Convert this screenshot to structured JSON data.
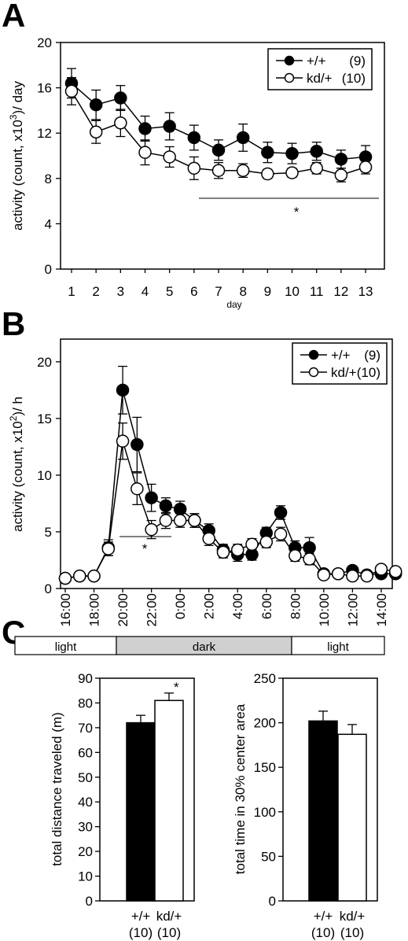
{
  "figure": {
    "panel_labels": [
      "A",
      "B",
      "C"
    ]
  },
  "chart_data": [
    {
      "panel": "A",
      "type": "line",
      "xlabel": "day",
      "ylabel": "activity (count, x10³)/ day",
      "ylim": [
        0,
        20
      ],
      "yticks": [
        "0",
        "4",
        "8",
        "12",
        "16",
        "20"
      ],
      "categories": [
        "1",
        "2",
        "3",
        "4",
        "5",
        "6",
        "7",
        "8",
        "9",
        "10",
        "11",
        "12",
        "13"
      ],
      "legend": {
        "placement": "top-right",
        "entries": [
          {
            "label": "+/+",
            "n": "(9)",
            "marker": "filled"
          },
          {
            "label": "kd/+",
            "n": "(10)",
            "marker": "open"
          }
        ]
      },
      "series": [
        {
          "name": "+/+ (9)",
          "marker": "filled",
          "values": [
            16.4,
            14.5,
            15.1,
            12.4,
            12.6,
            11.6,
            10.5,
            11.6,
            10.3,
            10.2,
            10.4,
            9.7,
            9.9
          ],
          "errors": [
            1.3,
            1.3,
            1.1,
            1.1,
            1.2,
            1.1,
            0.9,
            1.2,
            0.9,
            0.9,
            0.8,
            0.8,
            1.0
          ]
        },
        {
          "name": "kd/+ (10)",
          "marker": "open",
          "values": [
            15.7,
            12.1,
            12.9,
            10.3,
            9.9,
            8.9,
            8.7,
            8.7,
            8.4,
            8.5,
            8.9,
            8.3,
            9.0
          ],
          "errors": [
            1.2,
            1.0,
            1.2,
            1.1,
            0.9,
            1.0,
            0.7,
            0.6,
            0.4,
            0.4,
            0.5,
            0.6,
            0.6
          ]
        }
      ],
      "significance": {
        "from": "6",
        "to": "13",
        "label": "*"
      }
    },
    {
      "panel": "B",
      "type": "line",
      "ylabel": "activity (count, x10²)/ h",
      "ylim": [
        0,
        22
      ],
      "yticks": [
        "0",
        "5",
        "10",
        "15",
        "20"
      ],
      "xticks": [
        "16:00",
        "18:00",
        "20:00",
        "22:00",
        "0:00",
        "2:00",
        "4:00",
        "6:00",
        "8:00",
        "10:00",
        "12:00",
        "14:00"
      ],
      "x_hours": [
        16,
        17,
        18,
        19,
        20,
        21,
        22,
        23,
        24,
        25,
        26,
        27,
        28,
        29,
        30,
        31,
        32,
        33,
        34,
        35,
        36,
        37,
        38,
        39
      ],
      "legend": {
        "placement": "top-right",
        "entries": [
          {
            "label": "+/+",
            "n": "(9)",
            "marker": "filled"
          },
          {
            "label": "kd/+",
            "n": "(10)",
            "marker": "open"
          }
        ]
      },
      "series": [
        {
          "name": "+/+ (9)",
          "marker": "filled",
          "values": [
            0.9,
            1.1,
            1.1,
            3.6,
            17.5,
            12.7,
            8.0,
            7.3,
            7.0,
            6.0,
            5.1,
            3.4,
            3.0,
            3.0,
            4.9,
            6.7,
            3.6,
            3.6,
            1.3,
            1.3,
            1.6,
            1.2,
            1.3,
            1.3
          ],
          "errors": [
            0.2,
            0.3,
            0.3,
            0.7,
            2.1,
            2.4,
            1.2,
            0.7,
            0.7,
            0.6,
            0.6,
            0.5,
            0.6,
            0.5,
            0.5,
            0.6,
            0.6,
            0.9,
            0.3,
            0.3,
            0.3,
            0.3,
            0.3,
            0.3
          ]
        },
        {
          "name": "kd/+ (10)",
          "marker": "open",
          "values": [
            0.9,
            1.1,
            1.1,
            3.5,
            13.0,
            8.8,
            5.2,
            6.0,
            6.0,
            6.0,
            4.4,
            3.2,
            3.4,
            3.9,
            4.1,
            4.8,
            2.9,
            2.6,
            1.2,
            1.3,
            1.1,
            1.1,
            1.7,
            1.5
          ],
          "errors": [
            0.2,
            0.3,
            0.3,
            0.6,
            1.6,
            1.4,
            0.8,
            0.7,
            0.6,
            0.6,
            0.6,
            0.5,
            0.5,
            0.5,
            0.5,
            0.6,
            0.5,
            0.5,
            0.3,
            0.3,
            0.3,
            0.3,
            0.3,
            0.3
          ]
        }
      ],
      "significance": {
        "from_hour": 20,
        "to_hour": 23,
        "label": "*"
      },
      "light_dark_bar": [
        {
          "label": "light",
          "start_hour": 15.5,
          "end_hour": 19.5,
          "shade": "#ffffff"
        },
        {
          "label": "dark",
          "start_hour": 19.5,
          "end_hour": 31.5,
          "shade": "#d0d0d0"
        },
        {
          "label": "light",
          "start_hour": 31.5,
          "end_hour": 39.5,
          "shade": "#ffffff"
        }
      ]
    },
    {
      "panel": "C1",
      "type": "bar",
      "ylabel": "total distance traveled (m)",
      "ylim": [
        0,
        90
      ],
      "yticks": [
        "0",
        "10",
        "20",
        "30",
        "40",
        "50",
        "60",
        "70",
        "80",
        "90"
      ],
      "categories": [
        "+/+",
        "kd/+"
      ],
      "category_n": [
        "(10)",
        "(10)"
      ],
      "values": [
        72,
        81
      ],
      "errors": [
        3,
        3
      ],
      "fills": [
        "#000000",
        "#ffffff"
      ],
      "annotations": [
        {
          "category": "kd/+",
          "label": "*"
        }
      ]
    },
    {
      "panel": "C2",
      "type": "bar",
      "ylabel": "total time in 30% center area",
      "ylim": [
        0,
        250
      ],
      "yticks": [
        "0",
        "50",
        "100",
        "150",
        "200",
        "250"
      ],
      "categories": [
        "+/+",
        "kd/+"
      ],
      "category_n": [
        "(10)",
        "(10)"
      ],
      "values": [
        202,
        187
      ],
      "errors": [
        11,
        11
      ],
      "fills": [
        "#000000",
        "#ffffff"
      ]
    }
  ]
}
